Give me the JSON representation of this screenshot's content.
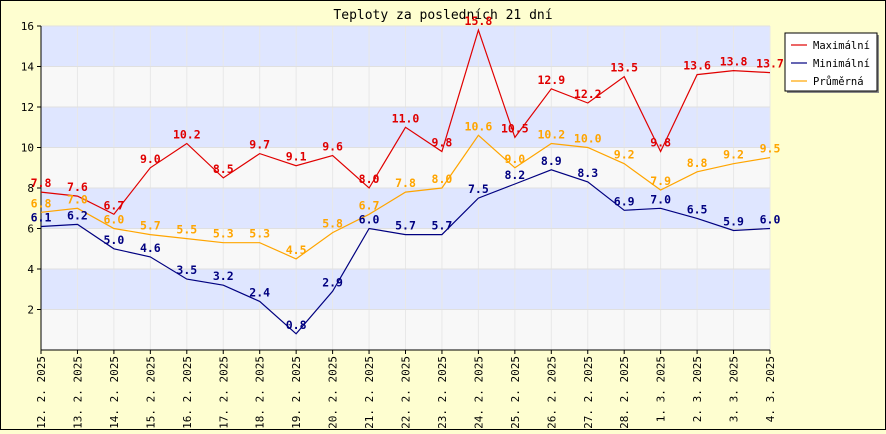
{
  "chart_data": {
    "type": "line",
    "title": "Teploty za posledních 21 dní",
    "xlabel": "",
    "ylabel": "",
    "ylim": [
      0,
      16
    ],
    "yticks": [
      2,
      4,
      6,
      8,
      10,
      12,
      14,
      16
    ],
    "grid": true,
    "legend_position": "top-right",
    "categories": [
      "12. 2. 2025",
      "13. 2. 2025",
      "14. 2. 2025",
      "15. 2. 2025",
      "16. 2. 2025",
      "17. 2. 2025",
      "18. 2. 2025",
      "19. 2. 2025",
      "20. 2. 2025",
      "21. 2. 2025",
      "22. 2. 2025",
      "23. 2. 2025",
      "24. 2. 2025",
      "25. 2. 2025",
      "26. 2. 2025",
      "27. 2. 2025",
      "28. 2. 2025",
      "1. 3. 2025",
      "2. 3. 2025",
      "3. 3. 2025",
      "4. 3. 2025"
    ],
    "series": [
      {
        "name": "Maximální",
        "color": "#e00000",
        "values": [
          7.8,
          7.6,
          6.7,
          9.0,
          10.2,
          8.5,
          9.7,
          9.1,
          9.6,
          8.0,
          11.0,
          9.8,
          15.8,
          10.5,
          12.9,
          12.2,
          13.5,
          9.8,
          13.6,
          13.8,
          13.7
        ]
      },
      {
        "name": "Minimální",
        "color": "#000080",
        "values": [
          6.1,
          6.2,
          5.0,
          4.6,
          3.5,
          3.2,
          2.4,
          0.8,
          2.9,
          6.0,
          5.7,
          5.7,
          7.5,
          8.2,
          8.9,
          8.3,
          6.9,
          7.0,
          6.5,
          5.9,
          6.0
        ]
      },
      {
        "name": "Průměrná",
        "color": "#ffa500",
        "values": [
          6.8,
          7.0,
          6.0,
          5.7,
          5.5,
          5.3,
          5.3,
          4.5,
          5.8,
          6.7,
          7.8,
          8.0,
          10.6,
          9.0,
          10.2,
          10.0,
          9.2,
          7.9,
          8.8,
          9.2,
          9.5
        ]
      }
    ],
    "value_labels": [
      [
        "7.8",
        "7.6",
        "6.7",
        "9.0",
        "10.2",
        "8.5",
        "9.7",
        "9.1",
        "9.6",
        "8.0",
        "11.0",
        "9.8",
        "15.8",
        "10.5",
        "12.9",
        "12.2",
        "13.5",
        "9.8",
        "13.6",
        "13.8",
        "13.7"
      ],
      [
        "6.1",
        "6.2",
        "5.0",
        "4.6",
        "3.5",
        "3.2",
        "2.4",
        "0.8",
        "2.9",
        "6.0",
        "5.7",
        "5.7",
        "7.5",
        "8.2",
        "8.9",
        "8.3",
        "6.9",
        "7.0",
        "6.5",
        "5.9",
        "6.0"
      ],
      [
        "6.8",
        "7.0",
        "6.0",
        "5.7",
        "5.5",
        "5.3",
        "5.3",
        "4.5",
        "5.8",
        "6.7",
        "7.8",
        "8.0",
        "10.6",
        "9.0",
        "10.2",
        "10.0",
        "9.2",
        "7.9",
        "8.8",
        "9.2",
        "9.5"
      ]
    ],
    "colors": {
      "background": "#fefed0",
      "plot_band_light": "#f8f8f8",
      "plot_band_blue": "#dfe6ff",
      "axis": "#000000"
    }
  }
}
